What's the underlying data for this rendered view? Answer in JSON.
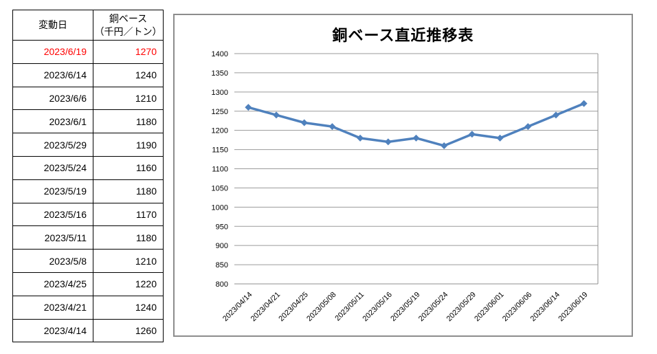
{
  "table": {
    "header": {
      "date": "変動日",
      "value_line1": "銅ベース",
      "value_line2": "（千円／トン）"
    },
    "highlight_color": "#FF0000",
    "rows": [
      {
        "date": "2023/6/19",
        "value": "1270",
        "highlight": true
      },
      {
        "date": "2023/6/14",
        "value": "1240",
        "highlight": false
      },
      {
        "date": "2023/6/6",
        "value": "1210",
        "highlight": false
      },
      {
        "date": "2023/6/1",
        "value": "1180",
        "highlight": false
      },
      {
        "date": "2023/5/29",
        "value": "1190",
        "highlight": false
      },
      {
        "date": "2023/5/24",
        "value": "1160",
        "highlight": false
      },
      {
        "date": "2023/5/19",
        "value": "1180",
        "highlight": false
      },
      {
        "date": "2023/5/16",
        "value": "1170",
        "highlight": false
      },
      {
        "date": "2023/5/11",
        "value": "1180",
        "highlight": false
      },
      {
        "date": "2023/5/8",
        "value": "1210",
        "highlight": false
      },
      {
        "date": "2023/4/25",
        "value": "1220",
        "highlight": false
      },
      {
        "date": "2023/4/21",
        "value": "1240",
        "highlight": false
      },
      {
        "date": "2023/4/14",
        "value": "1260",
        "highlight": false
      }
    ]
  },
  "chart_data": {
    "type": "line",
    "title": "銅ベース直近推移表",
    "categories": [
      "2023/04/14",
      "2023/04/21",
      "2023/04/25",
      "2023/05/08",
      "2023/05/11",
      "2023/05/16",
      "2023/05/19",
      "2023/05/24",
      "2023/05/29",
      "2023/06/01",
      "2023/06/06",
      "2023/06/14",
      "2023/06/19"
    ],
    "values": [
      1260,
      1240,
      1220,
      1210,
      1180,
      1170,
      1180,
      1160,
      1190,
      1180,
      1210,
      1240,
      1270
    ],
    "xlabel": "",
    "ylabel": "",
    "ylim": [
      800,
      1400
    ],
    "ytick_step": 50,
    "grid": true,
    "legend": "none",
    "marker": "diamond",
    "colors": {
      "line": "#4F81BD",
      "gridline": "#9a9a9a",
      "axis": "#8c8c8c",
      "plot_border": "#8c8c8c",
      "label_text": "#000000"
    }
  }
}
